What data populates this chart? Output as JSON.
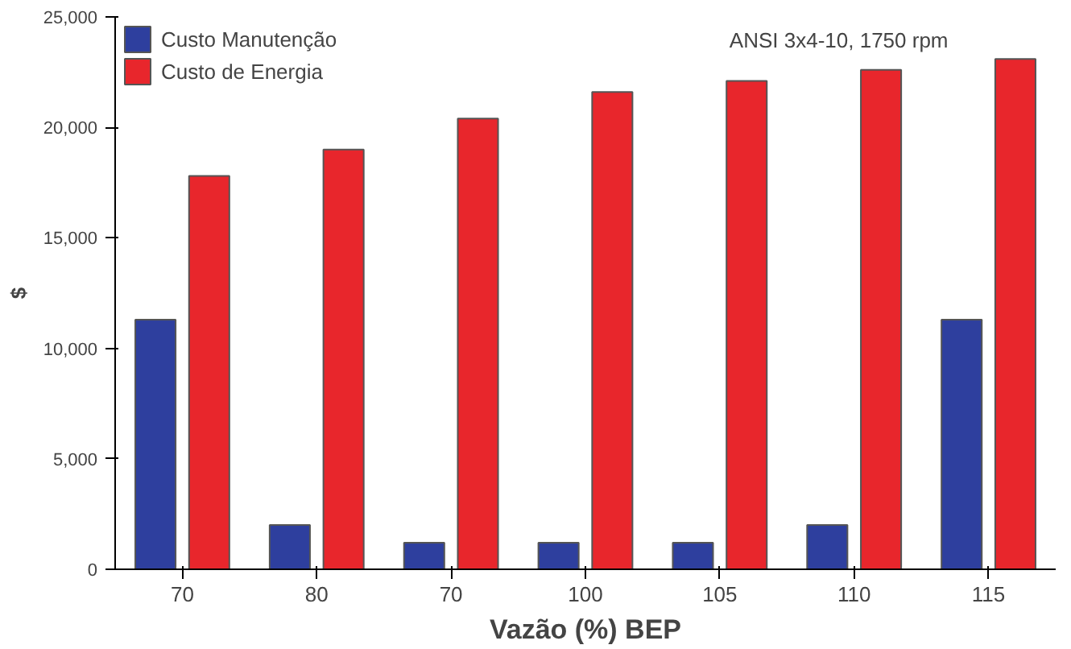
{
  "chart_data": {
    "type": "bar",
    "xlabel": "Vazão (%) BEP",
    "ylabel": "$",
    "categories": [
      "70",
      "80",
      "70",
      "100",
      "105",
      "110",
      "115"
    ],
    "series": [
      {
        "name": "Custo Manutenção",
        "color": "#2e3f9e",
        "values": [
          11300,
          2000,
          1200,
          1200,
          1200,
          2000,
          11300
        ]
      },
      {
        "name": "Custo de Energia",
        "color": "#e8262c",
        "values": [
          17800,
          19000,
          20400,
          21600,
          22100,
          22600,
          23100
        ]
      }
    ],
    "ylim": [
      0,
      25000
    ],
    "yticks": [
      {
        "value": 0,
        "label": "0"
      },
      {
        "value": 5000,
        "label": "5,000"
      },
      {
        "value": 10000,
        "label": "10,000"
      },
      {
        "value": 15000,
        "label": "15,000"
      },
      {
        "value": 20000,
        "label": "20,000"
      },
      {
        "value": 25000,
        "label": "25,000"
      }
    ],
    "annotations": [
      "ANSI 3x4-10, 1750 rpm"
    ],
    "legend": "top left",
    "grid": false
  }
}
